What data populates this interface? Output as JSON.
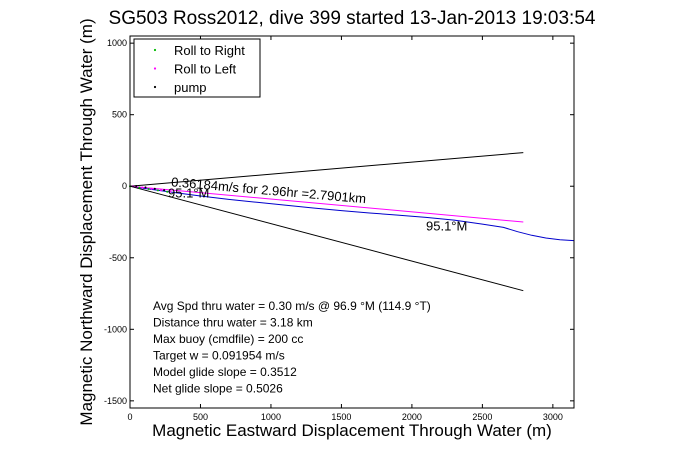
{
  "chart_data": {
    "type": "line",
    "title": "SG503 Ross2012, dive 399 started 13-Jan-2013 19:03:54",
    "xlabel": "Magnetic Eastward Displacement Through Water (m)",
    "ylabel": "Magnetic Northward Displacement Through Water (m)",
    "xlim": [
      0,
      3150
    ],
    "ylim": [
      -1550,
      1050
    ],
    "xticks": [
      0,
      500,
      1000,
      1500,
      2000,
      2500,
      3000
    ],
    "yticks": [
      -1500,
      -1000,
      -500,
      0,
      500,
      1000
    ],
    "grid": false,
    "legend_position": "top-left",
    "legend": [
      {
        "label": "Roll to Right",
        "color": "#00bb00",
        "marker": "dot"
      },
      {
        "label": "Roll to Left",
        "color": "#ff00ff",
        "marker": "dot"
      },
      {
        "label": "pump",
        "color": "#000000",
        "marker": "dot"
      }
    ],
    "series": [
      {
        "color": "#0000cc",
        "x": [
          0,
          100,
          300,
          500,
          700,
          900,
          1100,
          1300,
          1500,
          1700,
          1900,
          2100,
          2300,
          2500,
          2650,
          2750,
          2850,
          2950,
          3050,
          3150
        ],
        "y": [
          0,
          -15,
          -42,
          -68,
          -92,
          -112,
          -132,
          -152,
          -170,
          -187,
          -202,
          -218,
          -237,
          -265,
          -288,
          -318,
          -343,
          -362,
          -374,
          -380
        ]
      },
      {
        "color": "#ff00ff",
        "x": [
          0,
          2790
        ],
        "y": [
          0,
          -250
        ]
      },
      {
        "color": "#000000",
        "x": [
          0,
          2790
        ],
        "y": [
          0,
          235
        ]
      },
      {
        "color": "#000000",
        "x": [
          0,
          2790
        ],
        "y": [
          0,
          -730
        ]
      }
    ],
    "annotations": [
      {
        "text": "0.36184m/s for 2.96hr =2.7901km",
        "x": 290,
        "y": 0,
        "rotate_deg": 5
      },
      {
        "text": "95.1°M",
        "x": 270,
        "y": -80
      },
      {
        "text": "95.1°M",
        "x": 2100,
        "y": -310
      }
    ],
    "notes": [
      "Avg Spd thru water =  0.30 m/s @  96.9   °M (114.9 °T)",
      "Distance thru water =  3.18 km",
      "Max buoy (cmdfile) = 200 cc",
      "Target w = 0.091954 m/s",
      "Model glide slope = 0.3512",
      "Net glide slope = 0.5026"
    ]
  }
}
